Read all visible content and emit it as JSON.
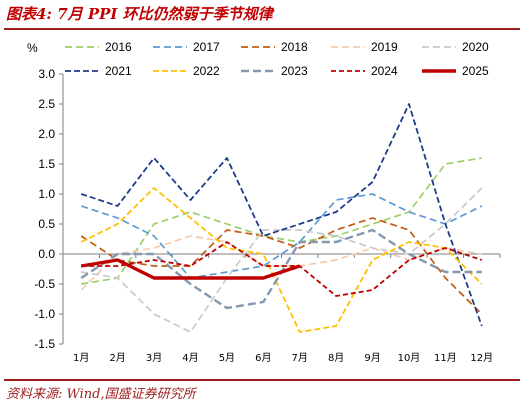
{
  "title": "图表4:  7月 PPI 环比仍然弱于季节规律",
  "source": "资料来源:  Wind,国盛证券研究所",
  "chart_data": {
    "type": "line",
    "unit": "%",
    "categories": [
      "1月",
      "2月",
      "3月",
      "4月",
      "5月",
      "6月",
      "7月",
      "8月",
      "9月",
      "10月",
      "11月",
      "12月"
    ],
    "ylim": [
      -1.5,
      3.0
    ],
    "yticks": [
      "3.0",
      "2.5",
      "2.0",
      "1.5",
      "1.0",
      "0.5",
      "0.0",
      "-0.5",
      "-1.0",
      "-1.5"
    ],
    "grid": false,
    "legend_position": "top",
    "series": [
      {
        "name": "2016",
        "color": "#9bcf6b",
        "dash": "7 4",
        "width": 1.7,
        "values": [
          -0.5,
          -0.4,
          0.5,
          0.7,
          0.5,
          0.3,
          0.2,
          0.3,
          0.5,
          0.7,
          1.5,
          1.6
        ]
      },
      {
        "name": "2017",
        "color": "#5b9bd5",
        "dash": "7 4",
        "width": 1.7,
        "values": [
          0.8,
          0.6,
          0.3,
          -0.4,
          -0.3,
          -0.2,
          0.2,
          0.9,
          1.0,
          0.7,
          0.5,
          0.8
        ]
      },
      {
        "name": "2018",
        "color": "#c55a11",
        "dash": "7 4",
        "width": 1.7,
        "values": [
          0.3,
          -0.1,
          -0.2,
          -0.2,
          0.4,
          0.3,
          0.1,
          0.4,
          0.6,
          0.4,
          -0.4,
          -1.0
        ]
      },
      {
        "name": "2019",
        "color": "#f8cbad",
        "dash": "7 4",
        "width": 1.7,
        "values": [
          -0.6,
          0.0,
          0.1,
          0.3,
          0.2,
          -0.2,
          -0.2,
          -0.1,
          0.1,
          -0.1,
          0.1,
          0.0
        ]
      },
      {
        "name": "2020",
        "color": "#c9c9c9",
        "dash": "7 4",
        "width": 1.7,
        "values": [
          -0.3,
          -0.4,
          -1.0,
          -1.3,
          -0.4,
          0.4,
          0.4,
          0.3,
          0.1,
          0.0,
          0.5,
          1.1
        ]
      },
      {
        "name": "2021",
        "color": "#1f3c88",
        "dash": "6 3",
        "width": 1.8,
        "values": [
          1.0,
          0.8,
          1.6,
          0.9,
          1.6,
          0.3,
          0.5,
          0.7,
          1.2,
          2.5,
          0.5,
          -1.2
        ]
      },
      {
        "name": "2022",
        "color": "#ffc000",
        "dash": "6 3",
        "width": 1.8,
        "values": [
          0.2,
          0.5,
          1.1,
          0.6,
          0.1,
          0.0,
          -1.3,
          -1.2,
          -0.1,
          0.2,
          0.1,
          -0.5
        ]
      },
      {
        "name": "2023",
        "color": "#8497b0",
        "dash": "8 4",
        "width": 2.4,
        "values": [
          -0.4,
          0.0,
          0.0,
          -0.5,
          -0.9,
          -0.8,
          0.2,
          0.2,
          0.4,
          0.0,
          -0.3,
          -0.3
        ]
      },
      {
        "name": "2024",
        "color": "#c00000",
        "dash": "5 3",
        "width": 1.8,
        "values": [
          -0.2,
          -0.2,
          -0.1,
          -0.2,
          0.2,
          -0.2,
          -0.2,
          -0.7,
          -0.6,
          -0.1,
          0.1,
          -0.1
        ]
      },
      {
        "name": "2025",
        "color": "#c00000",
        "dash": "",
        "width": 3.4,
        "values": [
          -0.2,
          -0.1,
          -0.4,
          -0.4,
          -0.4,
          -0.4,
          -0.2,
          null,
          null,
          null,
          null,
          null
        ]
      }
    ]
  }
}
